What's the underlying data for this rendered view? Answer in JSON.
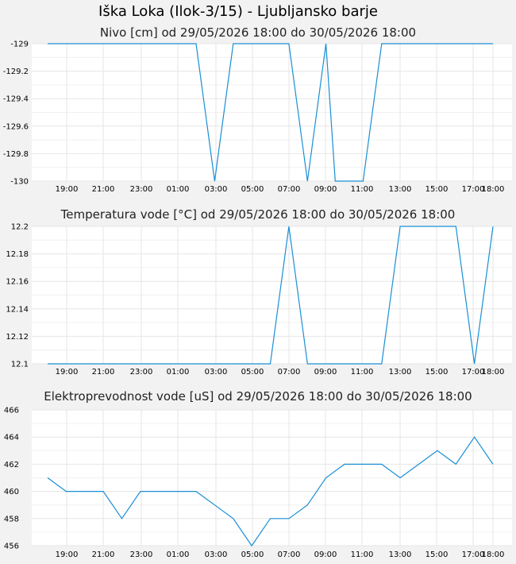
{
  "page": {
    "title": "Iška Loka (Ilok-3/15) - Ljubljansko barje"
  },
  "colors": {
    "line": "#1a8fd6",
    "grid": "#e6e6e6",
    "plot_bg": "#ffffff",
    "page_bg": "#f2f2f2"
  },
  "chart_data": [
    {
      "type": "line",
      "title": "Nivo [cm] od 29/05/2026 18:00 do 30/05/2026 18:00",
      "xlabel": "",
      "ylabel": "",
      "x_ticks": [
        "19:00",
        "21:00",
        "23:00",
        "01:00",
        "03:00",
        "05:00",
        "07:00",
        "09:00",
        "11:00",
        "13:00",
        "15:00",
        "17:00",
        "18:00"
      ],
      "y_ticks": [
        "-129",
        "-129.2",
        "-129.4",
        "-129.6",
        "-129.8",
        "-130"
      ],
      "ylim": [
        -130,
        -129
      ],
      "x_hours": [
        0,
        8,
        9,
        10,
        13,
        14,
        15,
        15.5,
        16,
        17,
        18,
        24
      ],
      "values": [
        -129,
        -129,
        -130,
        -129,
        -129,
        -130,
        -129,
        -130,
        -130,
        -130,
        -129,
        -129
      ],
      "grid": true
    },
    {
      "type": "line",
      "title": "Temperatura vode [°C] od 29/05/2026 18:00 do 30/05/2026 18:00",
      "xlabel": "",
      "ylabel": "",
      "x_ticks": [
        "19:00",
        "21:00",
        "23:00",
        "01:00",
        "03:00",
        "05:00",
        "07:00",
        "09:00",
        "11:00",
        "13:00",
        "15:00",
        "17:00",
        "18:00"
      ],
      "y_ticks": [
        "12.2",
        "12.18",
        "12.16",
        "12.14",
        "12.12",
        "12.1"
      ],
      "ylim": [
        12.1,
        12.2
      ],
      "x_hours": [
        0,
        12,
        13,
        14,
        18,
        19,
        22,
        23,
        24
      ],
      "values": [
        12.1,
        12.1,
        12.2,
        12.1,
        12.1,
        12.2,
        12.2,
        12.1,
        12.2
      ],
      "grid": true
    },
    {
      "type": "line",
      "title": "Elektroprevodnost vode [uS] od 29/05/2026 18:00 do 30/05/2026 18:00",
      "xlabel": "",
      "ylabel": "",
      "x_ticks": [
        "19:00",
        "21:00",
        "23:00",
        "01:00",
        "03:00",
        "05:00",
        "07:00",
        "09:00",
        "11:00",
        "13:00",
        "15:00",
        "17:00",
        "18:00"
      ],
      "y_ticks": [
        "466",
        "464",
        "462",
        "460",
        "458",
        "456"
      ],
      "ylim": [
        456,
        466
      ],
      "x_hours": [
        0,
        1,
        2,
        3,
        4,
        5,
        6,
        7,
        8,
        9,
        10,
        11,
        12,
        13,
        14,
        15,
        16,
        17,
        18,
        19,
        20,
        21,
        22,
        23,
        24
      ],
      "values": [
        461,
        460,
        460,
        460,
        458,
        460,
        460,
        460,
        460,
        459,
        458,
        456,
        458,
        458,
        459,
        461,
        462,
        462,
        462,
        461,
        462,
        463,
        462,
        464,
        462
      ],
      "grid": true
    }
  ]
}
